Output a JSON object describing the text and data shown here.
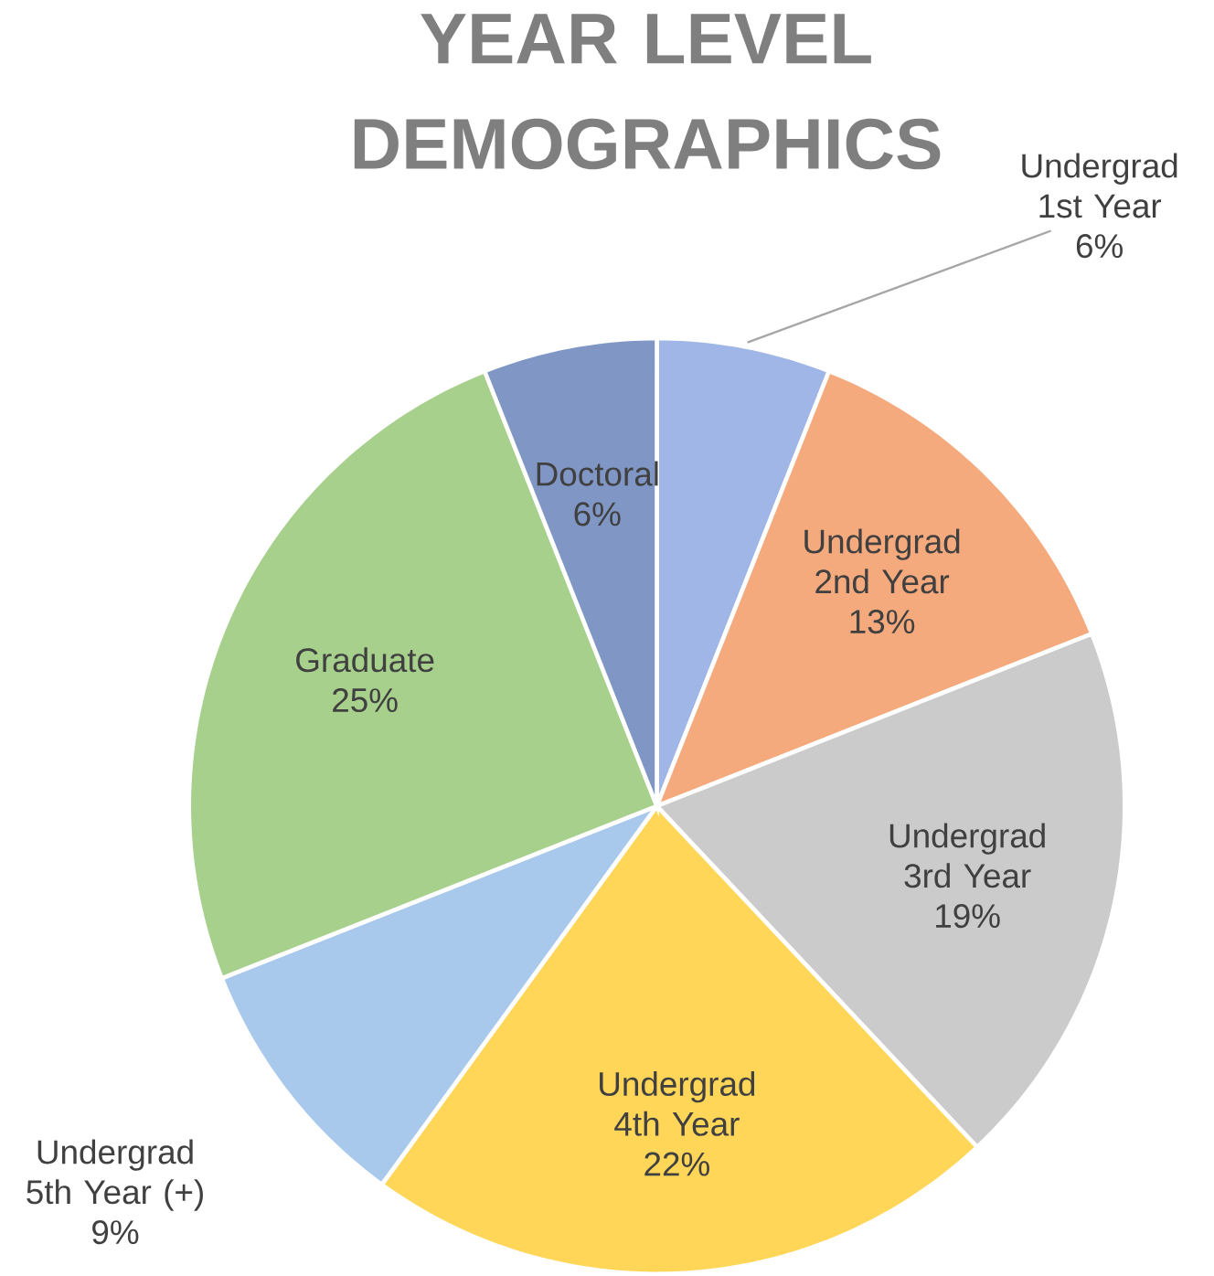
{
  "chart_data": {
    "type": "pie",
    "title": "YEAR LEVEL DEMOGRAPHICS",
    "categories": [
      "Undergrad 1st Year",
      "Undergrad 2nd Year",
      "Undergrad 3rd Year",
      "Undergrad 4th Year",
      "Undergrad 5th Year (+)",
      "Graduate",
      "Doctoral"
    ],
    "values": [
      6,
      13,
      19,
      22,
      9,
      25,
      6
    ],
    "value_labels": [
      "6%",
      "13%",
      "19%",
      "22%",
      "9%",
      "25%",
      "6%"
    ],
    "colors": [
      "#9fb6e6",
      "#f5aa7e",
      "#cbcbcb",
      "#ffd658",
      "#a9c9ec",
      "#a8d08d",
      "#8097c6"
    ]
  }
}
